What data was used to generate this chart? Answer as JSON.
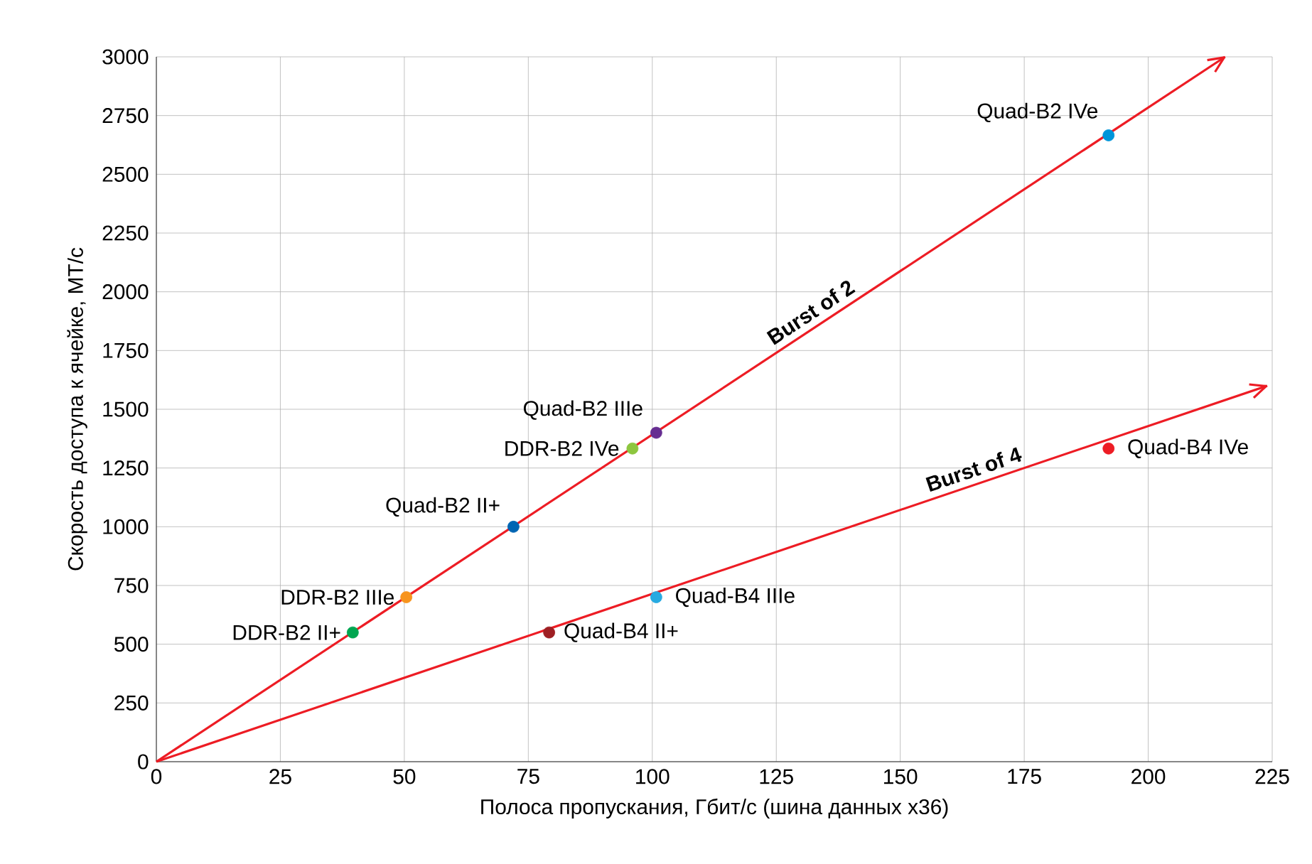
{
  "chart_data": {
    "type": "scatter",
    "xlabel": "Полоса пропускания, Гбит/с (шина данных x36)",
    "ylabel": "Скорость доступа к ячейке, МТ/с",
    "xlim": [
      0,
      225
    ],
    "ylim": [
      0,
      3000
    ],
    "xticks": [
      0,
      25,
      50,
      75,
      100,
      125,
      150,
      175,
      200,
      225
    ],
    "yticks": [
      0,
      250,
      500,
      750,
      1000,
      1250,
      1500,
      1750,
      2000,
      2250,
      2500,
      2750,
      3000
    ],
    "grid": true,
    "series": [
      {
        "type": "line",
        "name": "Burst of 2",
        "color": "#ed1c24",
        "marker": "none",
        "x": [
          0,
          215.5
        ],
        "values": [
          0,
          3000
        ]
      },
      {
        "type": "line",
        "name": "Burst of 4",
        "color": "#ed1c24",
        "marker": "none",
        "x": [
          0,
          224
        ],
        "values": [
          0,
          1600
        ]
      },
      {
        "name": "DDR-B2 II+",
        "color": "#00a650",
        "marker": "circle",
        "x": [
          39.6
        ],
        "values": [
          550
        ]
      },
      {
        "name": "DDR-B2 IIIe",
        "color": "#f7941d",
        "marker": "circle",
        "x": [
          50.4
        ],
        "values": [
          700
        ]
      },
      {
        "name": "Quad-B2 II+",
        "color": "#0065b3",
        "marker": "circle",
        "x": [
          72
        ],
        "values": [
          1000
        ]
      },
      {
        "name": "DDR-B2 IVe",
        "color": "#8dc63f",
        "marker": "circle",
        "x": [
          96
        ],
        "values": [
          1333
        ]
      },
      {
        "name": "Quad-B2 IIIe",
        "color": "#662d91",
        "marker": "circle",
        "x": [
          100.8
        ],
        "values": [
          1400
        ]
      },
      {
        "name": "Quad-B2 IVe",
        "color": "#0095da",
        "marker": "circle",
        "x": [
          192
        ],
        "values": [
          2666
        ]
      },
      {
        "name": "Quad-B4 II+",
        "color": "#9e1f23",
        "marker": "circle",
        "x": [
          79.2
        ],
        "values": [
          550
        ]
      },
      {
        "name": "Quad-B4 IIIe",
        "color": "#27aae1",
        "marker": "circle",
        "x": [
          100.8
        ],
        "values": [
          700
        ]
      },
      {
        "name": "Quad-B4 IVe",
        "color": "#ed1c24",
        "marker": "circle",
        "x": [
          192
        ],
        "values": [
          1333
        ]
      }
    ]
  }
}
